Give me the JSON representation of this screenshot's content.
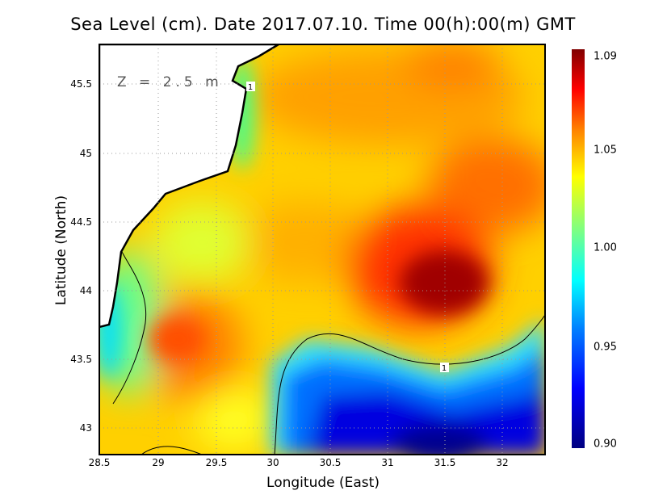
{
  "chart_data": {
    "type": "heatmap",
    "title": "Sea Level (cm). Date 2017.07.10. Time 00(h):00(m) GMT",
    "xlabel": "Longitude (East)",
    "ylabel": "Latitude (North)",
    "xlim": [
      28.5,
      32.37
    ],
    "ylim": [
      42.8,
      45.79
    ],
    "xticks": [
      "28.5",
      "29",
      "29.5",
      "30",
      "30.5",
      "31",
      "31.5",
      "32"
    ],
    "yticks": [
      "45.5",
      "45",
      "44.5",
      "44",
      "43.5",
      "43"
    ],
    "grid": true,
    "annotation": "Z = 2.5 m",
    "contour_level": 1,
    "contour_labels": [
      "1",
      "1"
    ],
    "colorbar": {
      "range": [
        0.9,
        1.09
      ],
      "ticks": [
        "1.09",
        "1.05",
        "1.00",
        "0.95",
        "0.90"
      ],
      "colors": [
        "#000080",
        "#0000ff",
        "#0080ff",
        "#00ffff",
        "#80ff80",
        "#ffff00",
        "#ff8000",
        "#ff0000",
        "#800000"
      ]
    },
    "features": [
      {
        "name": "high",
        "lon": 31.5,
        "lat": 44.1,
        "value": 1.09
      },
      {
        "name": "low",
        "lon": 31.5,
        "lat": 42.9,
        "value": 0.9
      },
      {
        "name": "high-sw",
        "lon": 29.2,
        "lat": 43.4,
        "value": 1.06
      }
    ]
  }
}
